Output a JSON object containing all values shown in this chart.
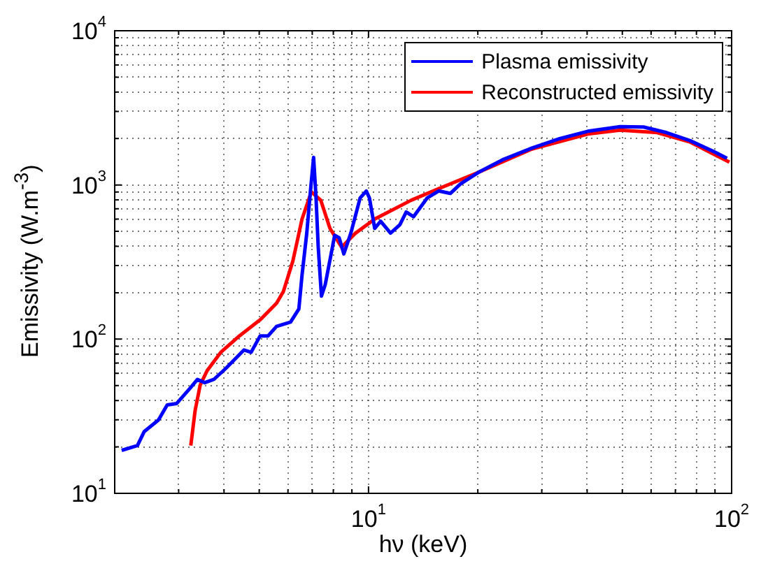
{
  "chart_data": {
    "type": "line",
    "xlabel": "hν (keV)",
    "ylabel": "Emissivity (W.m$^{-3}$)",
    "log": "xy",
    "grid": true,
    "legend": "top right",
    "line_style": "solid",
    "marker": "none",
    "xlim": [
      2,
      100
    ],
    "ylim": [
      10,
      10000
    ],
    "xticks": [
      {
        "value": 2,
        "label": null
      },
      {
        "value": 3,
        "label": null
      },
      {
        "value": 4,
        "label": null
      },
      {
        "value": 5,
        "label": null
      },
      {
        "value": 6,
        "label": null
      },
      {
        "value": 7,
        "label": null
      },
      {
        "value": 8,
        "label": null
      },
      {
        "value": 9,
        "label": null
      },
      {
        "value": 10,
        "label": "10$^{1}$"
      },
      {
        "value": 20,
        "label": null
      },
      {
        "value": 30,
        "label": null
      },
      {
        "value": 40,
        "label": null
      },
      {
        "value": 50,
        "label": null
      },
      {
        "value": 60,
        "label": null
      },
      {
        "value": 70,
        "label": null
      },
      {
        "value": 80,
        "label": null
      },
      {
        "value": 90,
        "label": null
      },
      {
        "value": 100,
        "label": "10$^{2}$"
      }
    ],
    "yticks": [
      {
        "value": 10,
        "label": "10$^{1}$"
      },
      {
        "value": 20,
        "label": null
      },
      {
        "value": 30,
        "label": null
      },
      {
        "value": 40,
        "label": null
      },
      {
        "value": 50,
        "label": null
      },
      {
        "value": 60,
        "label": null
      },
      {
        "value": 70,
        "label": null
      },
      {
        "value": 80,
        "label": null
      },
      {
        "value": 90,
        "label": null
      },
      {
        "value": 100,
        "label": "10$^{2}$"
      },
      {
        "value": 200,
        "label": null
      },
      {
        "value": 300,
        "label": null
      },
      {
        "value": 400,
        "label": null
      },
      {
        "value": 500,
        "label": null
      },
      {
        "value": 600,
        "label": null
      },
      {
        "value": 700,
        "label": null
      },
      {
        "value": 800,
        "label": null
      },
      {
        "value": 900,
        "label": null
      },
      {
        "value": 1000,
        "label": "10$^{3}$"
      },
      {
        "value": 2000,
        "label": null
      },
      {
        "value": 3000,
        "label": null
      },
      {
        "value": 4000,
        "label": null
      },
      {
        "value": 5000,
        "label": null
      },
      {
        "value": 6000,
        "label": null
      },
      {
        "value": 7000,
        "label": null
      },
      {
        "value": 8000,
        "label": null
      },
      {
        "value": 9000,
        "label": null
      },
      {
        "value": 10000,
        "label": "10$^{4}$"
      }
    ],
    "series": [
      {
        "name": "Plasma emissivity",
        "color": "#0000ff",
        "x": [
          2.09,
          2.31,
          2.41,
          2.64,
          2.79,
          2.96,
          3.24,
          3.38,
          3.54,
          3.75,
          4.04,
          4.54,
          4.75,
          5.03,
          5.29,
          5.58,
          6.1,
          6.43,
          6.56,
          6.76,
          6.92,
          7.06,
          7.17,
          7.27,
          7.42,
          7.6,
          8.07,
          8.3,
          8.55,
          8.94,
          9.48,
          9.86,
          10.06,
          10.4,
          10.8,
          11.5,
          12.2,
          12.7,
          13.3,
          14.5,
          15.6,
          16.8,
          17.9,
          20.1,
          23.6,
          28.2,
          33.6,
          40.2,
          49.3,
          57.2,
          66.2,
          76.7,
          89,
          97.1
        ],
        "values": [
          19,
          20.4,
          25.1,
          29.9,
          37.4,
          38.2,
          48.7,
          54.8,
          52.2,
          54.8,
          64.4,
          85.1,
          82.2,
          105,
          105,
          121,
          129,
          157,
          260,
          487,
          914,
          1510,
          822,
          395,
          190,
          226,
          471,
          455,
          357,
          487,
          822,
          914,
          822,
          523,
          581,
          487,
          552,
          667,
          622,
          822,
          914,
          881,
          1014,
          1208,
          1469,
          1735,
          1995,
          2230,
          2390,
          2375,
          2185,
          1941,
          1653,
          1490
        ]
      },
      {
        "name": "Reconstructed emissivity",
        "color": "#ff0000",
        "x": [
          3.24,
          3.33,
          3.44,
          3.59,
          3.92,
          4.41,
          5.04,
          5.58,
          5.83,
          6.19,
          6.56,
          6.96,
          7.39,
          7.83,
          8.43,
          9.21,
          10.4,
          13.1,
          15.6,
          20.1,
          28.2,
          40.2,
          49.3,
          62.4,
          76.7,
          98.6
        ],
        "values": [
          20.4,
          34.4,
          50.5,
          62.2,
          82.2,
          105,
          134,
          171,
          204,
          321,
          601,
          902,
          795,
          523,
          395,
          487,
          601,
          795,
          946,
          1208,
          1710,
          2138,
          2265,
          2185,
          1901,
          1406
        ]
      }
    ]
  }
}
